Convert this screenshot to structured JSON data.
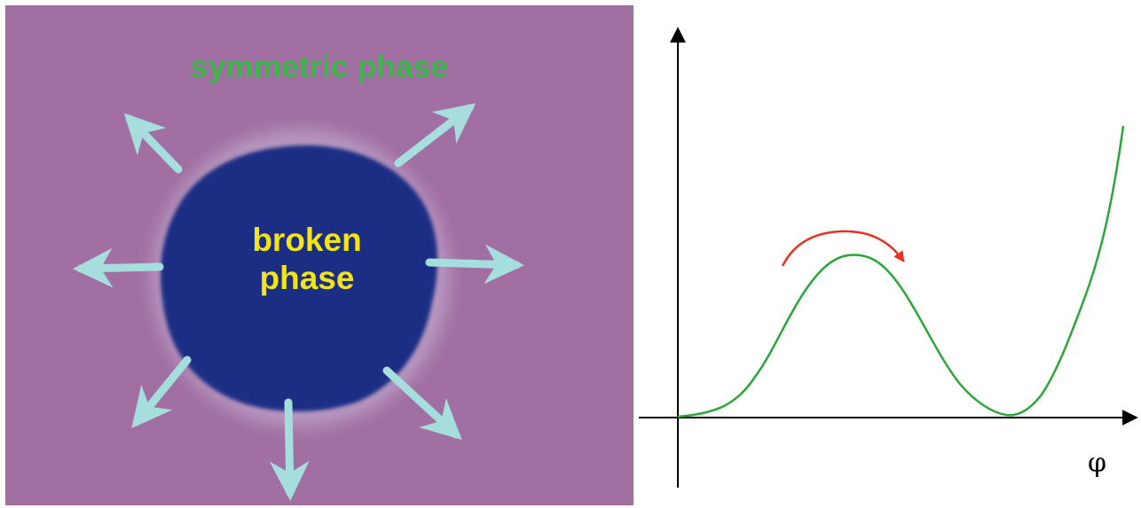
{
  "left_panel": {
    "outer_label": "symmetric phase",
    "inner_label_line1": "broken",
    "inner_label_line2": "phase"
  },
  "right_panel": {
    "x_axis_label": "φ"
  },
  "colors": {
    "background_purple": "#a16fa1",
    "bubble_blue": "#1e2d84",
    "arrow_cyan": "#a6dede",
    "outer_label_green": "#3cb84a",
    "inner_label_yellow": "#f2e415",
    "curve_green": "#2aa63a",
    "curve_arrow_red": "#e8321f",
    "axis_black": "#000000"
  },
  "icons": {
    "expansion_arrows": "outward-arrow-icon",
    "bubble": "bubble-shape"
  }
}
